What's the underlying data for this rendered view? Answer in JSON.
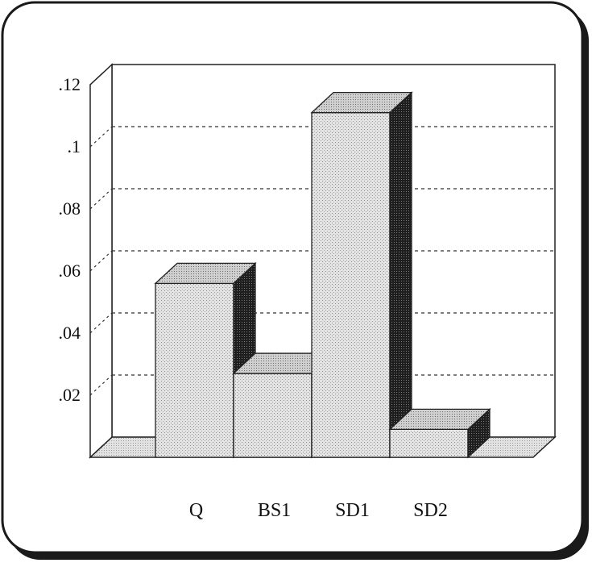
{
  "chart_data": {
    "type": "bar",
    "categories": [
      "Q",
      "BS1",
      "SD1",
      "SD2"
    ],
    "values": [
      0.056,
      0.027,
      0.111,
      0.009
    ],
    "ylim": [
      0,
      0.12
    ],
    "yticks": [
      {
        "value": 0.02,
        "label": ".02"
      },
      {
        "value": 0.04,
        "label": ".04"
      },
      {
        "value": 0.06,
        "label": ".06"
      },
      {
        "value": 0.08,
        "label": ".08"
      },
      {
        "value": 0.1,
        "label": ".1"
      },
      {
        "value": 0.12,
        "label": ".12"
      }
    ],
    "grid": true,
    "style": "3d-bar",
    "colors": {
      "front": "#d6d6d6",
      "top": "#c4c4c4",
      "side": "#2a2a2a",
      "floor": "#dcdcdc",
      "grid": "#333333"
    }
  }
}
